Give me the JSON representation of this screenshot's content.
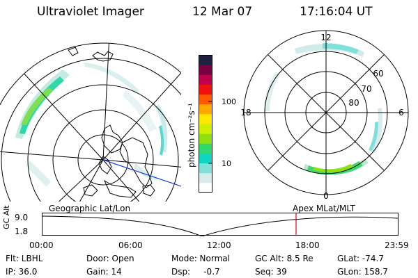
{
  "header": {
    "instrument": "Ultraviolet Imager",
    "date": "12 Mar 07",
    "time": "17:16:04 UT"
  },
  "left_panel": {
    "label": "Geographic Lat/Lon"
  },
  "right_panel": {
    "label": "Apex  MLat/MLT",
    "mlt_labels": {
      "top": "12",
      "right": "6",
      "bottom": "0",
      "left": "18"
    },
    "lat_labels": [
      "60",
      "70",
      "80"
    ]
  },
  "colorbar": {
    "unit": "photon cm⁻²s⁻¹",
    "ticks": [
      "100",
      "10"
    ],
    "scale": "log",
    "colors": [
      "#ffffff",
      "#d8ecec",
      "#7ee0d8",
      "#10d4c4",
      "#30d870",
      "#8ee010",
      "#d0ee00",
      "#ffe800",
      "#ffa800",
      "#ff5800",
      "#f01010",
      "#c0004a",
      "#7a0044",
      "#202040"
    ]
  },
  "altitude_plot": {
    "ylabel": "GC Alt",
    "yticks": [
      "9.0",
      "1.8"
    ],
    "xticks": [
      "00:00",
      "06:00",
      "12:00",
      "18:00",
      "23:59"
    ],
    "marker_color": "#dd0000"
  },
  "info": {
    "flt": "Flt: LBHL",
    "ip": "IP: 36.0",
    "door": "Door: Open",
    "gain": "Gain: 14",
    "mode": "Mode: Normal",
    "dsp": "Dsp:     -0.7",
    "gc_alt": "GC Alt: 8.5 Re",
    "seq": "Seq: 39",
    "glat": "GLat: -74.7",
    "glon": "GLon: 158.7"
  }
}
